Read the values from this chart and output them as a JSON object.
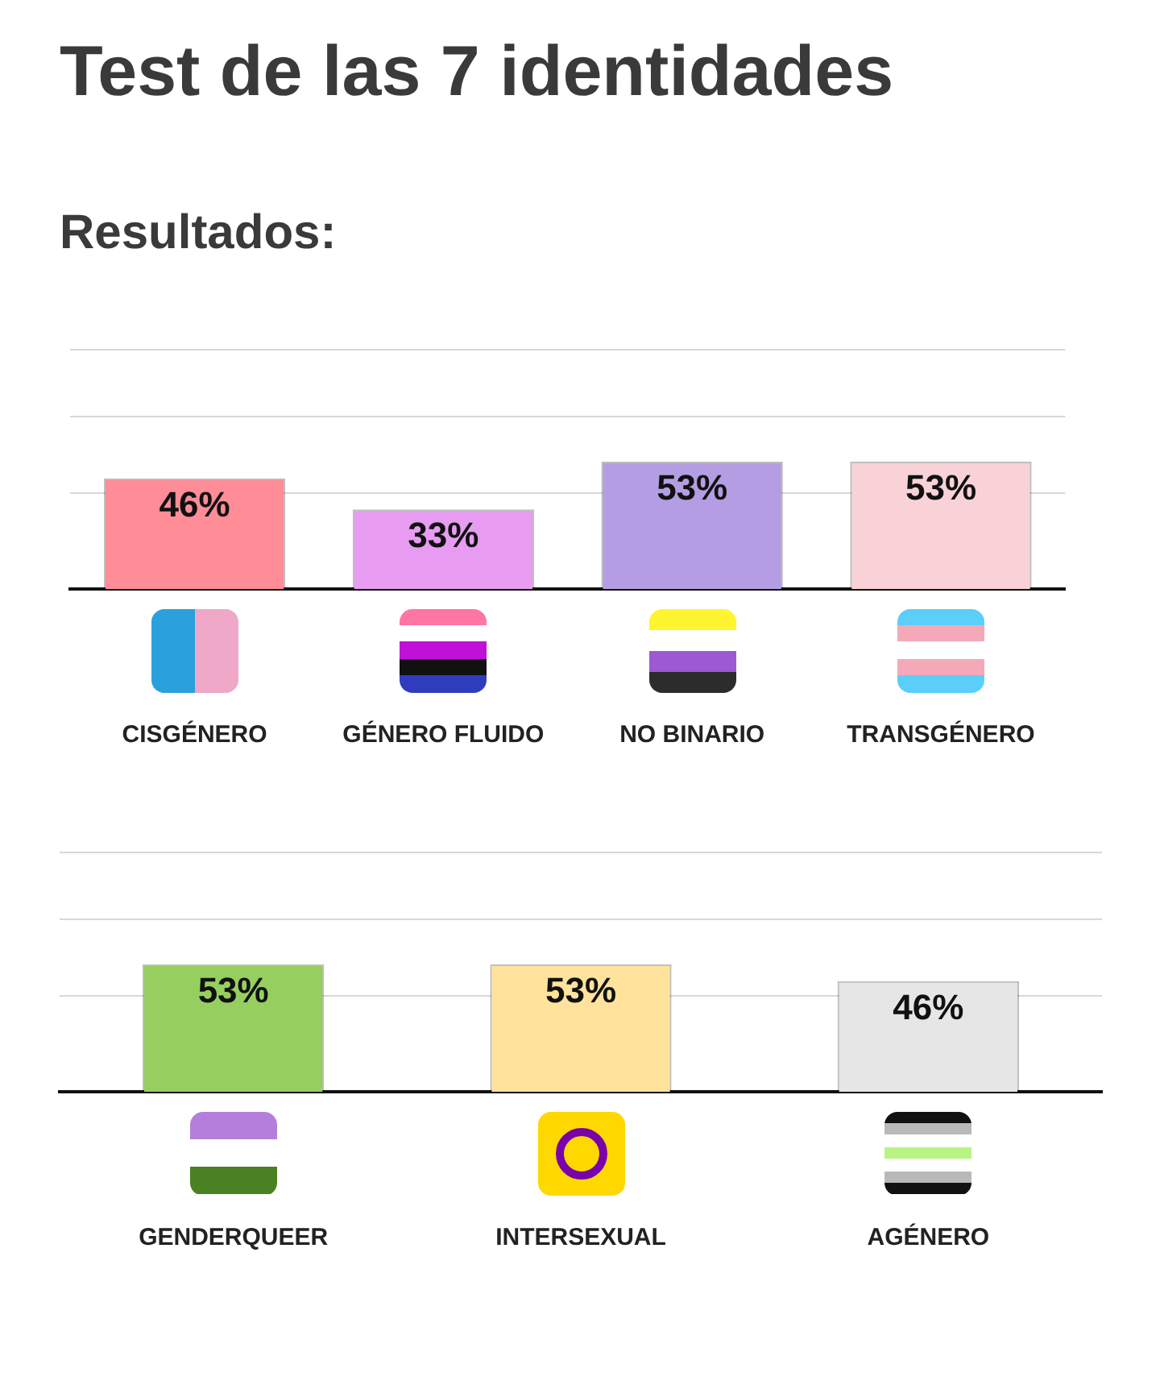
{
  "chart_data": [
    {
      "type": "bar",
      "title": "Test de las 7 identidades",
      "subtitle": "Resultados:",
      "categories": [
        "CISGÉNERO",
        "GÉNERO FLUIDO",
        "NO BINARIO",
        "TRANSGÉNERO"
      ],
      "values": [
        46,
        33,
        53,
        53
      ],
      "colors": [
        "#ff8d97",
        "#e79cf2",
        "#b49de2",
        "#f8d2d7"
      ],
      "value_labels": [
        "46%",
        "33%",
        "53%",
        "53%"
      ],
      "ylim": [
        0,
        100
      ],
      "yticks": [
        {
          "value": 40,
          "label": null
        },
        {
          "value": 72,
          "label": null
        },
        {
          "value": 100,
          "label": null
        }
      ],
      "grid": "y",
      "legend": false,
      "tick_labels": "x"
    },
    {
      "type": "bar",
      "categories": [
        "GENDERQUEER",
        "INTERSEXUAL",
        "AGÉNERO"
      ],
      "values": [
        53,
        53,
        46
      ],
      "colors": [
        "#96cf5f",
        "#ffe29c",
        "#e6e6e6"
      ],
      "value_labels": [
        "53%",
        "53%",
        "46%"
      ],
      "ylim": [
        0,
        100
      ],
      "yticks": [
        {
          "value": 40,
          "label": null
        },
        {
          "value": 72,
          "label": null
        },
        {
          "value": 100,
          "label": null
        }
      ],
      "grid": "y",
      "legend": false,
      "tick_labels": "x"
    }
  ]
}
